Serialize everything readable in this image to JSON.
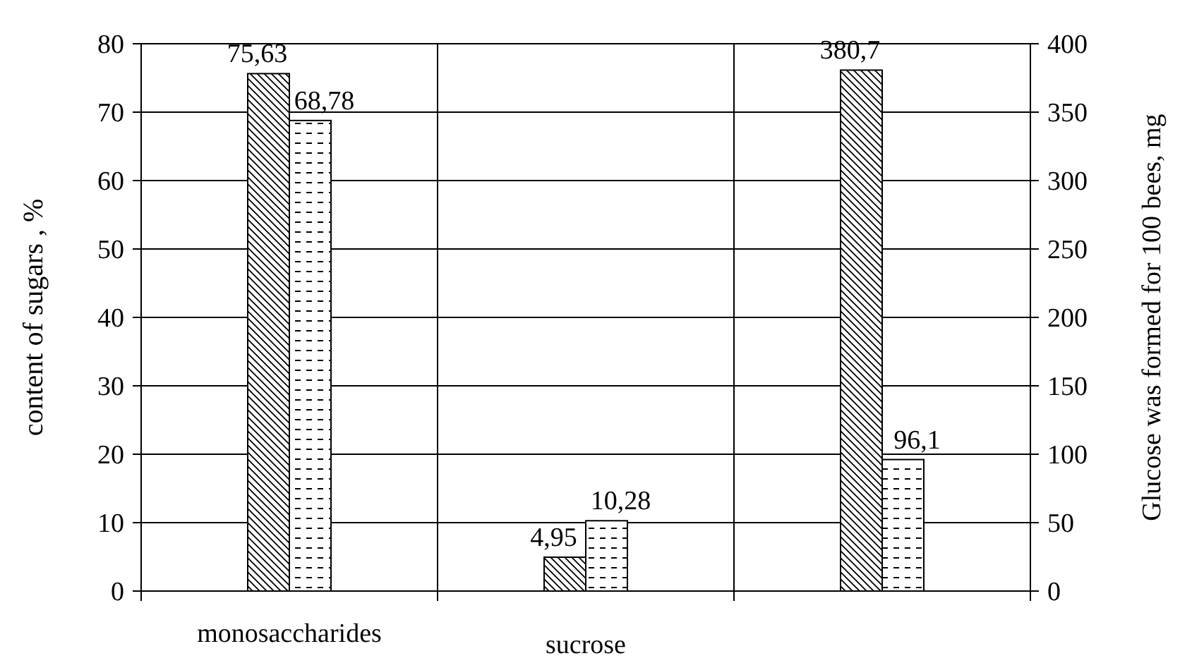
{
  "chart_data": {
    "type": "bar",
    "ylabel": "content of sugars , %",
    "y2label": "Glucose was formed for 100 bees, mg",
    "categories": [
      "monosaccharides",
      "sucrose",
      null
    ],
    "series": [
      {
        "color": "#000000",
        "values": [
          75.63,
          4.95,
          null
        ],
        "value_labels": [
          "75,63",
          "4,95",
          null
        ]
      },
      {
        "color": "#000000",
        "values": [
          68.78,
          10.28,
          null
        ],
        "value_labels": [
          "68,78",
          "10,28",
          null
        ]
      },
      {
        "color": "#000000",
        "axis": "y2",
        "values": [
          null,
          null,
          380.7
        ],
        "value_labels": [
          null,
          null,
          "380,7"
        ]
      },
      {
        "color": "#000000",
        "axis": "y2",
        "values": [
          null,
          null,
          96.1
        ],
        "value_labels": [
          null,
          null,
          "96,1"
        ]
      }
    ],
    "ylim": [
      0,
      80
    ],
    "yticks": [
      0,
      10,
      20,
      30,
      40,
      50,
      60,
      70,
      80
    ],
    "y2lim": [
      0,
      400
    ],
    "y2ticks": [
      0,
      50,
      100,
      150,
      200,
      250,
      300,
      350,
      400
    ],
    "grid": true
  }
}
